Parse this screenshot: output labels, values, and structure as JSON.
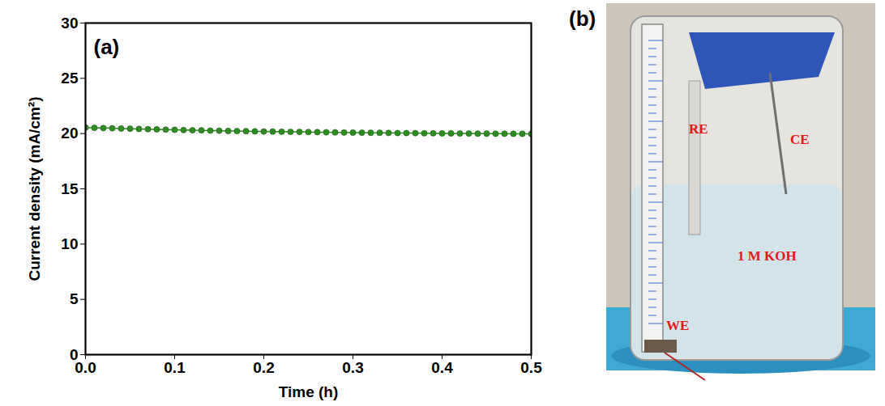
{
  "chart_data": {
    "type": "scatter",
    "annotations": [
      "(a)"
    ],
    "x_label": "Time (h)",
    "y_label": "Current density (mA/cm²)",
    "x": [
      0.0,
      0.01,
      0.02,
      0.03,
      0.04,
      0.05,
      0.06,
      0.07,
      0.08,
      0.09,
      0.1,
      0.11,
      0.12,
      0.13,
      0.14,
      0.15,
      0.16,
      0.17,
      0.18,
      0.19,
      0.2,
      0.21,
      0.22,
      0.23,
      0.24,
      0.25,
      0.26,
      0.27,
      0.28,
      0.29,
      0.3,
      0.31,
      0.32,
      0.33,
      0.34,
      0.35,
      0.36,
      0.37,
      0.38,
      0.39,
      0.4,
      0.41,
      0.42,
      0.43,
      0.44,
      0.45,
      0.46,
      0.47,
      0.48,
      0.49,
      0.5
    ],
    "values": [
      20.55,
      20.52,
      20.5,
      20.48,
      20.46,
      20.44,
      20.42,
      20.4,
      20.38,
      20.36,
      20.34,
      20.32,
      20.3,
      20.29,
      20.27,
      20.26,
      20.24,
      20.23,
      20.22,
      20.2,
      20.19,
      20.18,
      20.17,
      20.16,
      20.15,
      20.14,
      20.13,
      20.12,
      20.11,
      20.1,
      20.09,
      20.08,
      20.07,
      20.07,
      20.06,
      20.05,
      20.05,
      20.04,
      20.03,
      20.03,
      20.02,
      20.02,
      20.01,
      20.01,
      20.0,
      20.0,
      19.99,
      19.99,
      19.98,
      19.98,
      19.97
    ],
    "color": "#2e8b22",
    "marker": "circle",
    "xlim": [
      0,
      0.5
    ],
    "xticks": [
      {
        "value": 0,
        "label": "0.0"
      },
      {
        "value": 0.1,
        "label": "0.1"
      },
      {
        "value": 0.2,
        "label": "0.2"
      },
      {
        "value": 0.3,
        "label": "0.3"
      },
      {
        "value": 0.4,
        "label": "0.4"
      },
      {
        "value": 0.5,
        "label": "0.5"
      }
    ],
    "ylim": [
      0,
      30
    ],
    "yticks": [
      0,
      5,
      10,
      15,
      20,
      25,
      30
    ],
    "grid": false
  },
  "photo": {
    "letter": "(b)",
    "labels": [
      "RE",
      "CE",
      "1 M KOH",
      "WE"
    ]
  }
}
